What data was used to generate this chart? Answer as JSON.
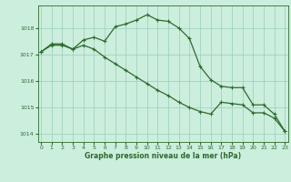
{
  "line1_x": [
    0,
    1,
    2,
    3,
    4,
    5,
    6,
    7,
    8,
    9,
    10,
    11,
    12,
    13,
    14,
    15,
    16,
    17,
    18,
    19,
    20,
    21,
    22,
    23
  ],
  "line1_y": [
    1017.1,
    1017.4,
    1017.4,
    1017.2,
    1017.55,
    1017.65,
    1017.5,
    1018.05,
    1018.15,
    1018.3,
    1018.5,
    1018.3,
    1018.25,
    1018.0,
    1017.6,
    1016.55,
    1016.05,
    1015.8,
    1015.75,
    1015.75,
    1015.1,
    1015.1,
    1014.75,
    1014.1
  ],
  "line2_x": [
    0,
    1,
    2,
    3,
    4,
    5,
    6,
    7,
    8,
    9,
    10,
    11,
    12,
    13,
    14,
    15,
    16,
    17,
    18,
    19,
    20,
    21,
    22,
    23
  ],
  "line2_y": [
    1017.1,
    1017.35,
    1017.35,
    1017.2,
    1017.35,
    1017.2,
    1016.9,
    1016.65,
    1016.4,
    1016.15,
    1015.9,
    1015.65,
    1015.45,
    1015.2,
    1015.0,
    1014.85,
    1014.75,
    1015.2,
    1015.15,
    1015.1,
    1014.8,
    1014.8,
    1014.6,
    1014.1
  ],
  "line_color": "#2d6a2d",
  "bg_color": "#cceedd",
  "grid_color": "#99ccbb",
  "xlabel": "Graphe pression niveau de la mer (hPa)",
  "xticks": [
    0,
    1,
    2,
    3,
    4,
    5,
    6,
    7,
    8,
    9,
    10,
    11,
    12,
    13,
    14,
    15,
    16,
    17,
    18,
    19,
    20,
    21,
    22,
    23
  ],
  "yticks": [
    1014,
    1015,
    1016,
    1017,
    1018
  ],
  "ylim": [
    1013.7,
    1018.85
  ],
  "xlim": [
    -0.3,
    23.3
  ]
}
